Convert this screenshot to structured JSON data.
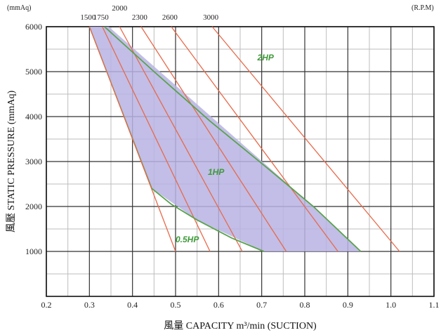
{
  "chart_data": {
    "type": "line",
    "xlabel": "風量 CAPACITY m³/min (SUCTION)",
    "ylabel": "風壓 STATIC PRESSURE (mmAq)",
    "y_unit": "(mmAq)",
    "rpm_unit": "(R.P.M)",
    "xlim": [
      0.2,
      1.1
    ],
    "ylim": [
      0,
      6000
    ],
    "x_ticks": [
      "0.2",
      "0.3",
      "0.4",
      "0.5",
      "0.6",
      "0.7",
      "0.8",
      "0.9",
      "1.0",
      "1.1"
    ],
    "x_tick_values": [
      0.2,
      0.3,
      0.4,
      0.5,
      0.6,
      0.7,
      0.8,
      0.9,
      1.0,
      1.1
    ],
    "y_ticks": [
      "1000",
      "2000",
      "3000",
      "4000",
      "5000",
      "6000"
    ],
    "y_tick_values": [
      1000,
      2000,
      3000,
      4000,
      5000,
      6000
    ],
    "grid": true,
    "rpm_lines": [
      {
        "label": "1500",
        "points": [
          [
            0.3,
            6000
          ],
          [
            0.5,
            1000
          ]
        ]
      },
      {
        "label": "1750",
        "points": [
          [
            0.33,
            6000
          ],
          [
            0.58,
            1000
          ]
        ]
      },
      {
        "label": "2000",
        "points": [
          [
            0.37,
            6000
          ],
          [
            0.655,
            1000
          ]
        ]
      },
      {
        "label": "2300",
        "points": [
          [
            0.42,
            6000
          ],
          [
            0.757,
            1000
          ]
        ]
      },
      {
        "label": "2600",
        "points": [
          [
            0.49,
            6000
          ],
          [
            0.877,
            1000
          ]
        ]
      },
      {
        "label": "3000",
        "points": [
          [
            0.585,
            6000
          ],
          [
            1.02,
            1000
          ]
        ]
      }
    ],
    "operating_region": [
      [
        0.3,
        6000
      ],
      [
        0.345,
        6000
      ],
      [
        0.82,
        2000
      ],
      [
        0.93,
        1000
      ],
      [
        0.705,
        1000
      ],
      [
        0.55,
        1700
      ],
      [
        0.445,
        2400
      ]
    ],
    "hp_curves": [
      {
        "label": "2HP",
        "label_pos": [
          0.69,
          5250
        ],
        "points": [
          [
            0.335,
            6000
          ],
          [
            0.45,
            5000
          ],
          [
            0.58,
            3900
          ],
          [
            0.72,
            2800
          ],
          [
            0.82,
            2000
          ],
          [
            0.93,
            1000
          ]
        ]
      },
      {
        "label": "1HP",
        "label_pos": [
          0.575,
          2700
        ],
        "points": [
          [
            0.445,
            2400
          ],
          [
            0.49,
            2050
          ],
          [
            0.55,
            1700
          ],
          [
            0.63,
            1300
          ],
          [
            0.705,
            1000
          ]
        ]
      },
      {
        "label": "0.5HP",
        "label_pos": [
          0.5,
          1200
        ],
        "points": []
      }
    ],
    "colors": {
      "rpm_line": "#e8694a",
      "region_fill": "#b7b3e3",
      "hp_curve": "#5aa24d",
      "grid_major": "#333333",
      "grid_minor": "#bdbdbd"
    }
  }
}
